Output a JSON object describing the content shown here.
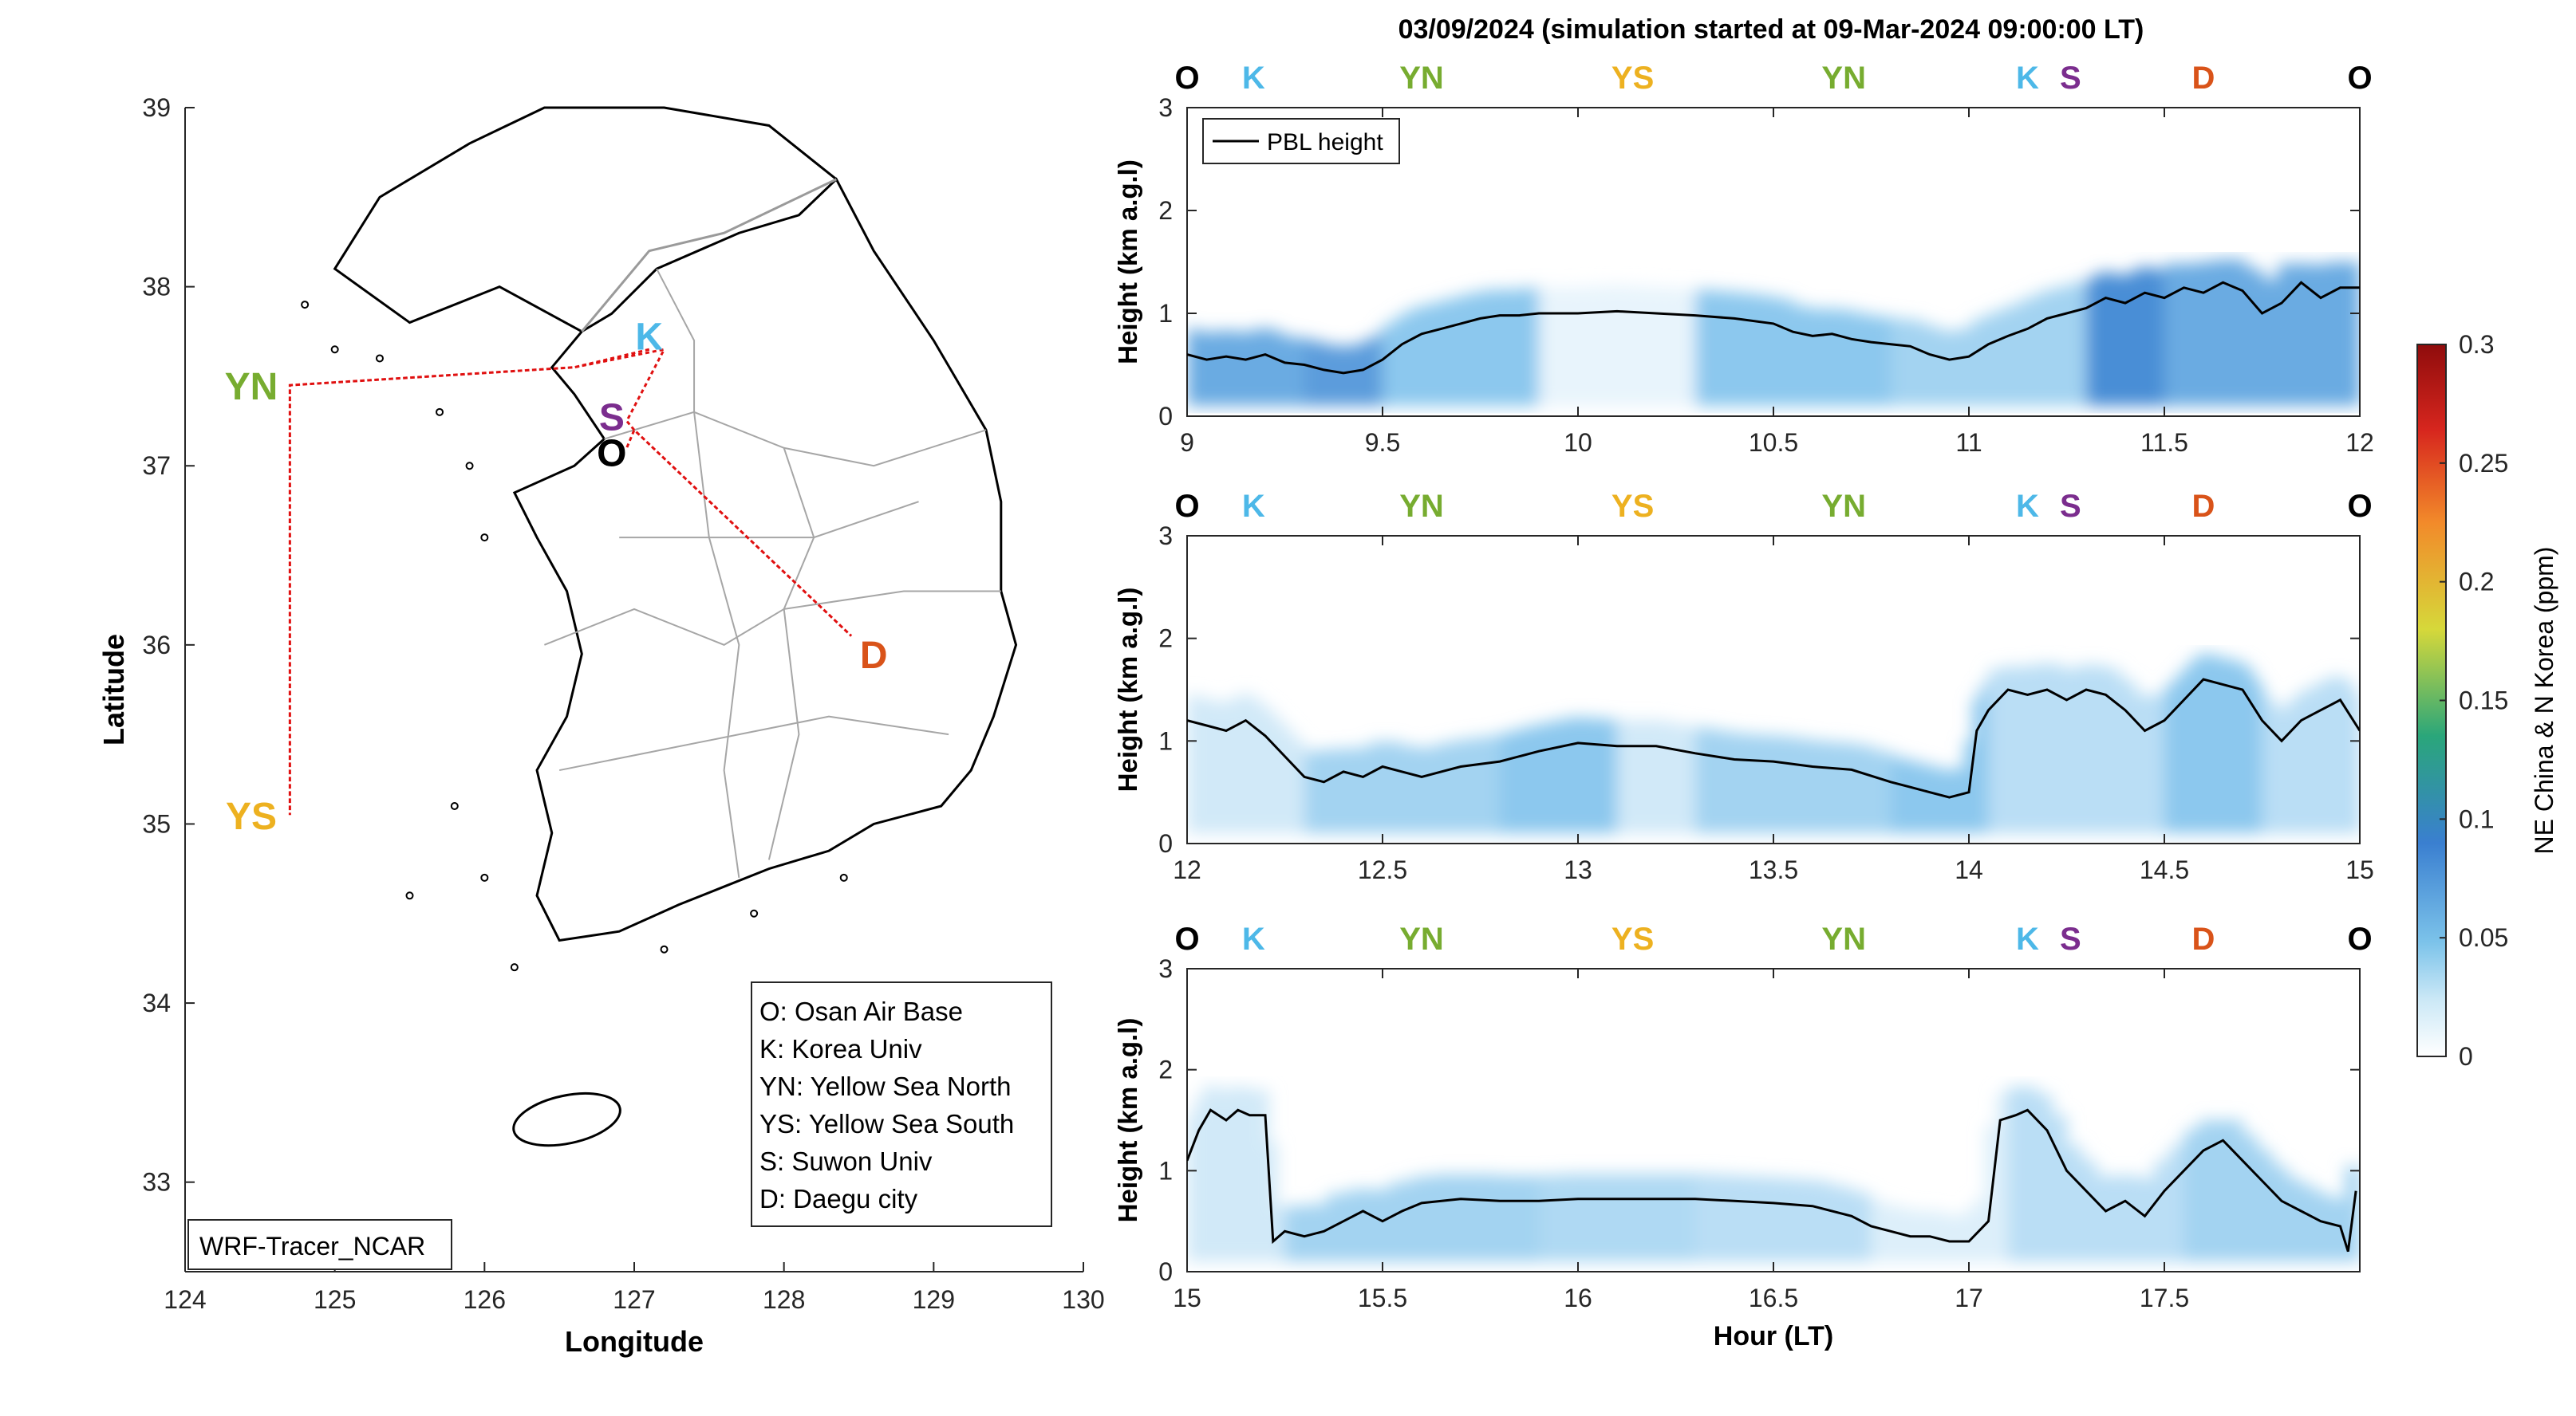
{
  "figure": {
    "title": "03/09/2024 (simulation started at 09-Mar-2024 09:00:00 LT)"
  },
  "map": {
    "xlabel": "Longitude",
    "ylabel": "Latitude",
    "xlim": [
      124,
      130
    ],
    "ylim": [
      32.5,
      39
    ],
    "xticks": [
      "124",
      "125",
      "126",
      "127",
      "128",
      "129",
      "130"
    ],
    "yticks": [
      "33",
      "34",
      "35",
      "36",
      "37",
      "38",
      "39"
    ],
    "watermark": "WRF-Tracer_NCAR",
    "sites": [
      {
        "code": "O",
        "lon": 126.85,
        "lat": 37.08,
        "color": "#000000"
      },
      {
        "code": "K",
        "lon": 127.1,
        "lat": 37.73,
        "color": "#4db8e8"
      },
      {
        "code": "S",
        "lon": 126.85,
        "lat": 37.28,
        "color": "#7b2d8e"
      },
      {
        "code": "YN",
        "lon": 124.55,
        "lat": 37.45,
        "color": "#77ac30"
      },
      {
        "code": "YS",
        "lon": 124.55,
        "lat": 35.05,
        "color": "#edb120"
      },
      {
        "code": "D",
        "lon": 128.6,
        "lat": 35.95,
        "color": "#d95319"
      }
    ],
    "flight_track": [
      [
        127.1,
        37.65
      ],
      [
        126.6,
        37.55
      ],
      [
        124.7,
        37.45
      ],
      [
        124.7,
        35.05
      ],
      [
        124.7,
        37.45
      ],
      [
        126.6,
        37.55
      ],
      [
        127.2,
        37.65
      ],
      [
        126.95,
        37.25
      ],
      [
        127.0,
        37.2
      ],
      [
        128.45,
        36.05
      ],
      [
        127.0,
        37.2
      ],
      [
        126.95,
        37.1
      ]
    ],
    "legend": [
      "O: Osan Air Base",
      "K: Korea Univ",
      "YN: Yellow Sea North",
      "YS: Yellow Sea South",
      "S: Suwon Univ",
      "D: Daegu city"
    ]
  },
  "colorbar": {
    "label": "NE China & N Korea (ppm)",
    "ticks": [
      "0",
      "0.05",
      "0.1",
      "0.15",
      "0.2",
      "0.25",
      "0.3"
    ],
    "range": [
      0,
      0.3
    ]
  },
  "chart_data": [
    {
      "type": "line",
      "title": "",
      "xlabel": "",
      "ylabel": "Height (km a.g.l)",
      "xlim": [
        9,
        12
      ],
      "ylim": [
        0,
        3
      ],
      "xticks": [
        "9",
        "9.5",
        "10",
        "10.5",
        "11",
        "11.5",
        "12"
      ],
      "yticks": [
        "0",
        "1",
        "2",
        "3"
      ],
      "legend": "PBL height",
      "site_labels": [
        {
          "text": "O",
          "x": 9.0,
          "color": "#000000"
        },
        {
          "text": "K",
          "x": 9.17,
          "color": "#4db8e8"
        },
        {
          "text": "YN",
          "x": 9.6,
          "color": "#77ac30"
        },
        {
          "text": "YS",
          "x": 10.14,
          "color": "#edb120"
        },
        {
          "text": "YN",
          "x": 10.68,
          "color": "#77ac30"
        },
        {
          "text": "K",
          "x": 11.15,
          "color": "#4db8e8"
        },
        {
          "text": "S",
          "x": 11.26,
          "color": "#7b2d8e"
        },
        {
          "text": "D",
          "x": 11.6,
          "color": "#d95319"
        },
        {
          "text": "O",
          "x": 12.0,
          "color": "#000000"
        }
      ],
      "series": [
        {
          "name": "PBL height",
          "x": [
            9.0,
            9.05,
            9.1,
            9.15,
            9.2,
            9.25,
            9.3,
            9.35,
            9.4,
            9.45,
            9.5,
            9.55,
            9.6,
            9.65,
            9.7,
            9.75,
            9.8,
            9.85,
            9.9,
            9.95,
            10.0,
            10.1,
            10.2,
            10.3,
            10.4,
            10.5,
            10.55,
            10.6,
            10.65,
            10.7,
            10.75,
            10.8,
            10.85,
            10.9,
            10.95,
            11.0,
            11.05,
            11.1,
            11.15,
            11.2,
            11.25,
            11.3,
            11.35,
            11.4,
            11.45,
            11.5,
            11.55,
            11.6,
            11.65,
            11.7,
            11.75,
            11.8,
            11.85,
            11.9,
            11.95,
            12.0
          ],
          "y": [
            0.6,
            0.55,
            0.58,
            0.55,
            0.6,
            0.52,
            0.5,
            0.45,
            0.42,
            0.45,
            0.55,
            0.7,
            0.8,
            0.85,
            0.9,
            0.95,
            0.98,
            0.98,
            1.0,
            1.0,
            1.0,
            1.02,
            1.0,
            0.98,
            0.95,
            0.9,
            0.82,
            0.78,
            0.8,
            0.75,
            0.72,
            0.7,
            0.68,
            0.6,
            0.55,
            0.58,
            0.7,
            0.78,
            0.85,
            0.95,
            1.0,
            1.05,
            1.15,
            1.1,
            1.2,
            1.15,
            1.25,
            1.2,
            1.3,
            1.22,
            1.0,
            1.1,
            1.3,
            1.15,
            1.25,
            1.25
          ]
        }
      ],
      "tracer_band": [
        {
          "x0": 9.0,
          "x1": 9.3,
          "value": 0.07
        },
        {
          "x0": 9.3,
          "x1": 9.5,
          "value": 0.08
        },
        {
          "x0": 9.5,
          "x1": 9.9,
          "value": 0.05
        },
        {
          "x0": 9.9,
          "x1": 10.3,
          "value": 0.01
        },
        {
          "x0": 10.3,
          "x1": 10.8,
          "value": 0.05
        },
        {
          "x0": 10.8,
          "x1": 11.3,
          "value": 0.04
        },
        {
          "x0": 11.3,
          "x1": 11.5,
          "value": 0.09
        },
        {
          "x0": 11.5,
          "x1": 12.0,
          "value": 0.07
        }
      ]
    },
    {
      "type": "line",
      "title": "",
      "xlabel": "",
      "ylabel": "Height (km a.g.l)",
      "xlim": [
        12,
        15
      ],
      "ylim": [
        0,
        3
      ],
      "xticks": [
        "12",
        "12.5",
        "13",
        "13.5",
        "14",
        "14.5",
        "15"
      ],
      "yticks": [
        "0",
        "1",
        "2",
        "3"
      ],
      "site_labels": [
        {
          "text": "O",
          "x": 12.0,
          "color": "#000000"
        },
        {
          "text": "K",
          "x": 12.17,
          "color": "#4db8e8"
        },
        {
          "text": "YN",
          "x": 12.6,
          "color": "#77ac30"
        },
        {
          "text": "YS",
          "x": 13.14,
          "color": "#edb120"
        },
        {
          "text": "YN",
          "x": 13.68,
          "color": "#77ac30"
        },
        {
          "text": "K",
          "x": 14.15,
          "color": "#4db8e8"
        },
        {
          "text": "S",
          "x": 14.26,
          "color": "#7b2d8e"
        },
        {
          "text": "D",
          "x": 14.6,
          "color": "#d95319"
        },
        {
          "text": "O",
          "x": 15.0,
          "color": "#000000"
        }
      ],
      "series": [
        {
          "name": "PBL height",
          "x": [
            12.0,
            12.05,
            12.1,
            12.15,
            12.2,
            12.25,
            12.3,
            12.35,
            12.4,
            12.45,
            12.5,
            12.55,
            12.6,
            12.65,
            12.7,
            12.8,
            12.9,
            13.0,
            13.1,
            13.2,
            13.3,
            13.4,
            13.5,
            13.6,
            13.7,
            13.8,
            13.85,
            13.9,
            13.95,
            14.0,
            14.02,
            14.05,
            14.1,
            14.15,
            14.2,
            14.25,
            14.3,
            14.35,
            14.4,
            14.45,
            14.5,
            14.55,
            14.6,
            14.65,
            14.7,
            14.75,
            14.8,
            14.85,
            14.9,
            14.95,
            15.0
          ],
          "y": [
            1.2,
            1.15,
            1.1,
            1.2,
            1.05,
            0.85,
            0.65,
            0.6,
            0.7,
            0.65,
            0.75,
            0.7,
            0.65,
            0.7,
            0.75,
            0.8,
            0.9,
            0.98,
            0.95,
            0.95,
            0.88,
            0.82,
            0.8,
            0.75,
            0.72,
            0.6,
            0.55,
            0.5,
            0.45,
            0.5,
            1.1,
            1.3,
            1.5,
            1.45,
            1.5,
            1.4,
            1.5,
            1.45,
            1.3,
            1.1,
            1.2,
            1.4,
            1.6,
            1.55,
            1.5,
            1.2,
            1.0,
            1.2,
            1.3,
            1.4,
            1.1
          ]
        }
      ],
      "tracer_band": [
        {
          "x0": 12.0,
          "x1": 12.3,
          "value": 0.02
        },
        {
          "x0": 12.3,
          "x1": 12.8,
          "value": 0.04
        },
        {
          "x0": 12.8,
          "x1": 13.1,
          "value": 0.05
        },
        {
          "x0": 13.1,
          "x1": 13.3,
          "value": 0.02
        },
        {
          "x0": 13.3,
          "x1": 13.8,
          "value": 0.04
        },
        {
          "x0": 13.8,
          "x1": 14.05,
          "value": 0.05
        },
        {
          "x0": 14.05,
          "x1": 14.5,
          "value": 0.03
        },
        {
          "x0": 14.5,
          "x1": 14.75,
          "value": 0.05
        },
        {
          "x0": 14.75,
          "x1": 15.0,
          "value": 0.03
        }
      ]
    },
    {
      "type": "line",
      "title": "",
      "xlabel": "Hour (LT)",
      "ylabel": "Height (km a.g.l)",
      "xlim": [
        15,
        18
      ],
      "ylim": [
        0,
        3
      ],
      "xticks": [
        "15",
        "15.5",
        "16",
        "16.5",
        "17",
        "17.5"
      ],
      "yticks": [
        "0",
        "1",
        "2",
        "3"
      ],
      "site_labels": [
        {
          "text": "O",
          "x": 15.0,
          "color": "#000000"
        },
        {
          "text": "K",
          "x": 15.17,
          "color": "#4db8e8"
        },
        {
          "text": "YN",
          "x": 15.6,
          "color": "#77ac30"
        },
        {
          "text": "YS",
          "x": 16.14,
          "color": "#edb120"
        },
        {
          "text": "YN",
          "x": 16.68,
          "color": "#77ac30"
        },
        {
          "text": "K",
          "x": 17.15,
          "color": "#4db8e8"
        },
        {
          "text": "S",
          "x": 17.26,
          "color": "#7b2d8e"
        },
        {
          "text": "D",
          "x": 17.6,
          "color": "#d95319"
        },
        {
          "text": "O",
          "x": 18.0,
          "color": "#000000"
        }
      ],
      "series": [
        {
          "name": "PBL height",
          "x": [
            15.0,
            15.03,
            15.06,
            15.1,
            15.13,
            15.16,
            15.2,
            15.22,
            15.25,
            15.3,
            15.35,
            15.4,
            15.45,
            15.5,
            15.55,
            15.6,
            15.7,
            15.8,
            15.9,
            16.0,
            16.1,
            16.2,
            16.3,
            16.4,
            16.5,
            16.6,
            16.7,
            16.75,
            16.8,
            16.85,
            16.9,
            16.95,
            17.0,
            17.05,
            17.08,
            17.12,
            17.15,
            17.2,
            17.25,
            17.3,
            17.35,
            17.4,
            17.45,
            17.5,
            17.55,
            17.6,
            17.65,
            17.7,
            17.75,
            17.8,
            17.85,
            17.9,
            17.95,
            17.97,
            17.99
          ],
          "y": [
            1.1,
            1.4,
            1.6,
            1.5,
            1.6,
            1.55,
            1.55,
            0.3,
            0.4,
            0.35,
            0.4,
            0.5,
            0.6,
            0.5,
            0.6,
            0.68,
            0.72,
            0.7,
            0.7,
            0.72,
            0.72,
            0.72,
            0.72,
            0.7,
            0.68,
            0.65,
            0.55,
            0.45,
            0.4,
            0.35,
            0.35,
            0.3,
            0.3,
            0.5,
            1.5,
            1.55,
            1.6,
            1.4,
            1.0,
            0.8,
            0.6,
            0.7,
            0.55,
            0.8,
            1.0,
            1.2,
            1.3,
            1.1,
            0.9,
            0.7,
            0.6,
            0.5,
            0.45,
            0.2,
            0.8
          ]
        }
      ],
      "tracer_band": [
        {
          "x0": 15.0,
          "x1": 15.25,
          "value": 0.02
        },
        {
          "x0": 15.25,
          "x1": 15.9,
          "value": 0.04
        },
        {
          "x0": 15.9,
          "x1": 16.3,
          "value": 0.035
        },
        {
          "x0": 16.3,
          "x1": 16.75,
          "value": 0.03
        },
        {
          "x0": 16.75,
          "x1": 17.1,
          "value": 0.015
        },
        {
          "x0": 17.1,
          "x1": 17.55,
          "value": 0.03
        },
        {
          "x0": 17.55,
          "x1": 18.0,
          "value": 0.04
        }
      ]
    }
  ]
}
